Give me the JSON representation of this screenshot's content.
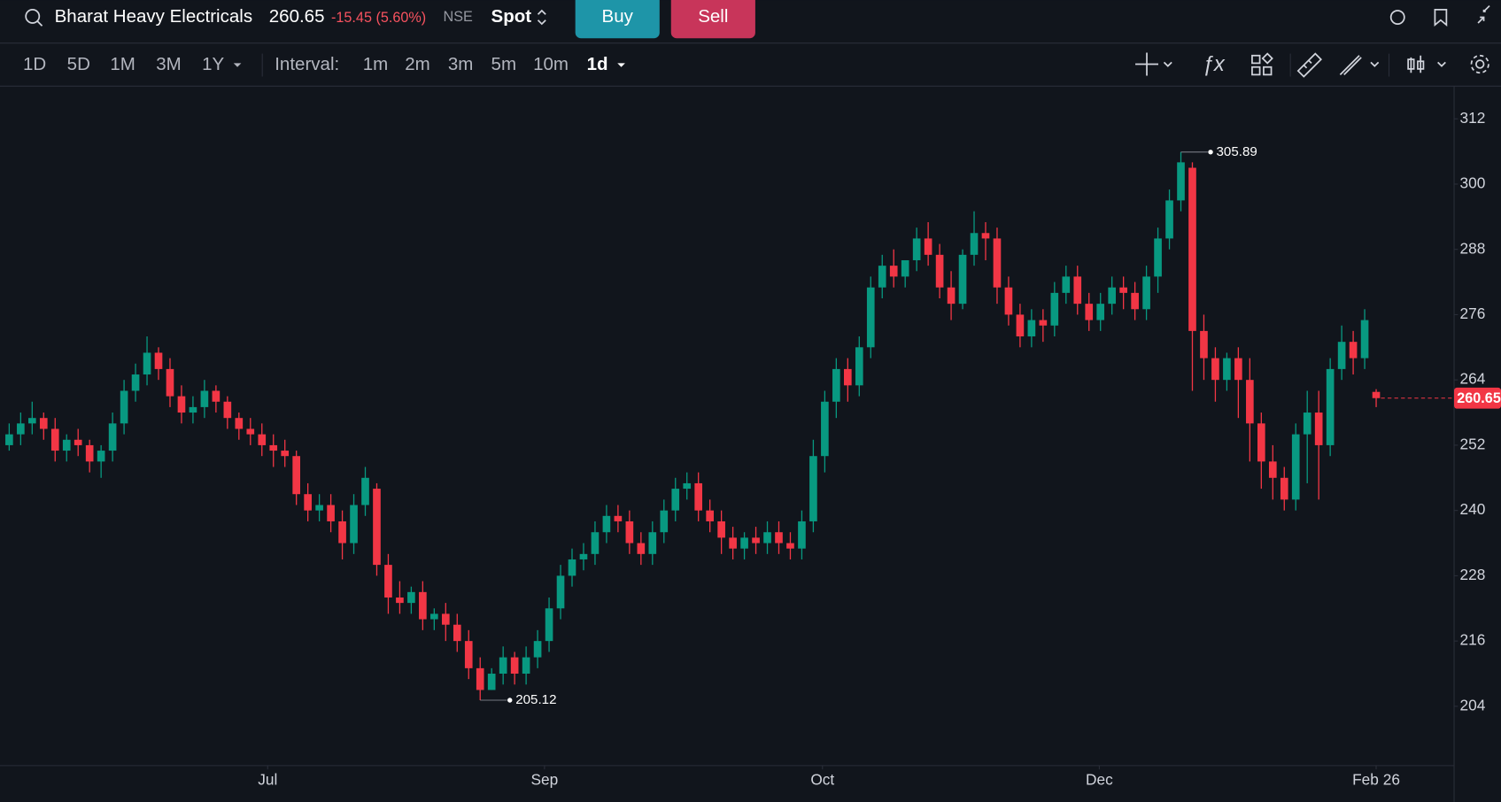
{
  "header": {
    "symbol": "Bharat Heavy Electricals",
    "price": "260.65",
    "change": "-15.45 (5.60%)",
    "exchange": "NSE",
    "market": "Spot",
    "buy": "Buy",
    "sell": "Sell"
  },
  "toolbar": {
    "ranges": [
      "1D",
      "5D",
      "1M",
      "3M",
      "1Y"
    ],
    "interval_label": "Interval:",
    "intervals": [
      "1m",
      "2m",
      "3m",
      "5m",
      "10m",
      "1d"
    ]
  },
  "chart_data": {
    "type": "candlestick",
    "open": [
      252,
      254,
      256,
      257,
      255,
      251,
      253,
      252,
      249,
      251,
      256,
      262,
      265,
      269,
      266,
      261,
      258,
      259,
      262,
      260,
      257,
      255,
      254,
      252,
      251,
      250,
      243,
      240,
      241,
      238,
      234,
      241,
      244,
      230,
      224,
      223,
      225,
      220,
      221,
      219,
      216,
      211,
      207,
      210,
      213,
      210,
      213,
      216,
      222,
      228,
      231,
      232,
      236,
      239,
      238,
      234,
      232,
      236,
      240,
      244,
      245,
      240,
      238,
      235,
      233,
      235,
      234,
      236,
      234,
      233,
      238,
      250,
      260,
      266,
      263,
      270,
      281,
      285,
      283,
      286,
      290,
      287,
      281,
      278,
      287,
      291,
      290,
      281,
      276,
      272,
      275,
      274,
      280,
      283,
      278,
      275,
      278,
      281,
      280,
      277,
      283,
      290,
      297,
      303,
      273,
      268,
      264,
      268,
      264,
      256,
      249,
      246,
      242,
      254,
      258,
      252,
      266,
      271,
      268,
      261.8
    ],
    "high": [
      256,
      258,
      260,
      258,
      257,
      254,
      255,
      253,
      252,
      258,
      264,
      267,
      272,
      270,
      268,
      263,
      261,
      264,
      263,
      261,
      258,
      257,
      256,
      254,
      253,
      251,
      245,
      243,
      243,
      240,
      243,
      248,
      245,
      232,
      227,
      226,
      227,
      222,
      223,
      221,
      218,
      213,
      211,
      215,
      214,
      215,
      218,
      224,
      230,
      233,
      234,
      238,
      241,
      241,
      240,
      236,
      238,
      242,
      246,
      247,
      247,
      242,
      240,
      237,
      236,
      237,
      238,
      238,
      236,
      240,
      253,
      262,
      268,
      268,
      272,
      283,
      287,
      288,
      286,
      292,
      293,
      289,
      284,
      288,
      295,
      293,
      292,
      283,
      278,
      277,
      277,
      282,
      285,
      285,
      280,
      280,
      283,
      283,
      282,
      285,
      292,
      299,
      305.89,
      304,
      276,
      270,
      269,
      270,
      268,
      258,
      252,
      248,
      256,
      262,
      262,
      268,
      274,
      273,
      277,
      262.3
    ],
    "low": [
      251,
      252,
      254,
      253,
      249,
      249,
      250,
      247,
      246,
      249,
      254,
      260,
      263,
      264,
      259,
      256,
      256,
      257,
      258,
      255,
      253,
      252,
      250,
      248,
      248,
      241,
      238,
      238,
      236,
      231,
      232,
      239,
      228,
      221,
      221,
      221,
      218,
      218,
      216,
      214,
      209,
      205.12,
      207,
      208,
      208,
      208,
      211,
      214,
      220,
      226,
      229,
      230,
      234,
      236,
      232,
      230,
      230,
      234,
      238,
      242,
      238,
      236,
      232,
      231,
      231,
      232,
      232,
      232,
      231,
      231,
      236,
      247,
      257,
      260,
      261,
      268,
      279,
      281,
      281,
      284,
      285,
      279,
      275,
      277,
      285,
      286,
      278,
      274,
      270,
      270,
      271,
      272,
      278,
      276,
      273,
      273,
      276,
      277,
      275,
      275,
      280,
      288,
      295,
      262,
      264,
      260,
      262,
      257,
      249,
      244,
      242,
      240,
      240,
      245,
      242,
      250,
      264,
      265,
      266,
      259
    ],
    "close": [
      254,
      256,
      257,
      255,
      251,
      253,
      252,
      249,
      251,
      256,
      262,
      265,
      269,
      266,
      261,
      258,
      259,
      262,
      260,
      257,
      255,
      254,
      252,
      251,
      250,
      243,
      240,
      241,
      238,
      234,
      241,
      246,
      230,
      224,
      223,
      225,
      220,
      221,
      219,
      216,
      211,
      207,
      210,
      213,
      210,
      213,
      216,
      222,
      228,
      231,
      232,
      236,
      239,
      238,
      234,
      232,
      236,
      240,
      244,
      245,
      240,
      238,
      235,
      233,
      235,
      234,
      236,
      234,
      233,
      238,
      250,
      260,
      266,
      263,
      270,
      281,
      285,
      283,
      286,
      290,
      287,
      281,
      278,
      287,
      291,
      290,
      281,
      276,
      272,
      275,
      274,
      280,
      283,
      278,
      275,
      278,
      281,
      280,
      277,
      283,
      290,
      297,
      304,
      273,
      268,
      264,
      268,
      264,
      256,
      249,
      246,
      242,
      254,
      258,
      252,
      266,
      271,
      268,
      275,
      260.65
    ],
    "up_color": "#089981",
    "down_color": "#f23645",
    "ylim": [
      193.1,
      318.0
    ],
    "yticks": [
      204,
      216,
      228,
      240,
      252,
      264,
      276,
      288,
      300,
      312
    ],
    "xlim": [
      -0.8,
      125.7
    ],
    "xticks": [
      {
        "value": 22.5,
        "label": "Jul"
      },
      {
        "value": 46.6,
        "label": "Sep"
      },
      {
        "value": 70.8,
        "label": "Oct"
      },
      {
        "value": 94.9,
        "label": "Dec"
      },
      {
        "value": 119,
        "label": "Feb 26"
      }
    ],
    "last_price_line": true
  }
}
